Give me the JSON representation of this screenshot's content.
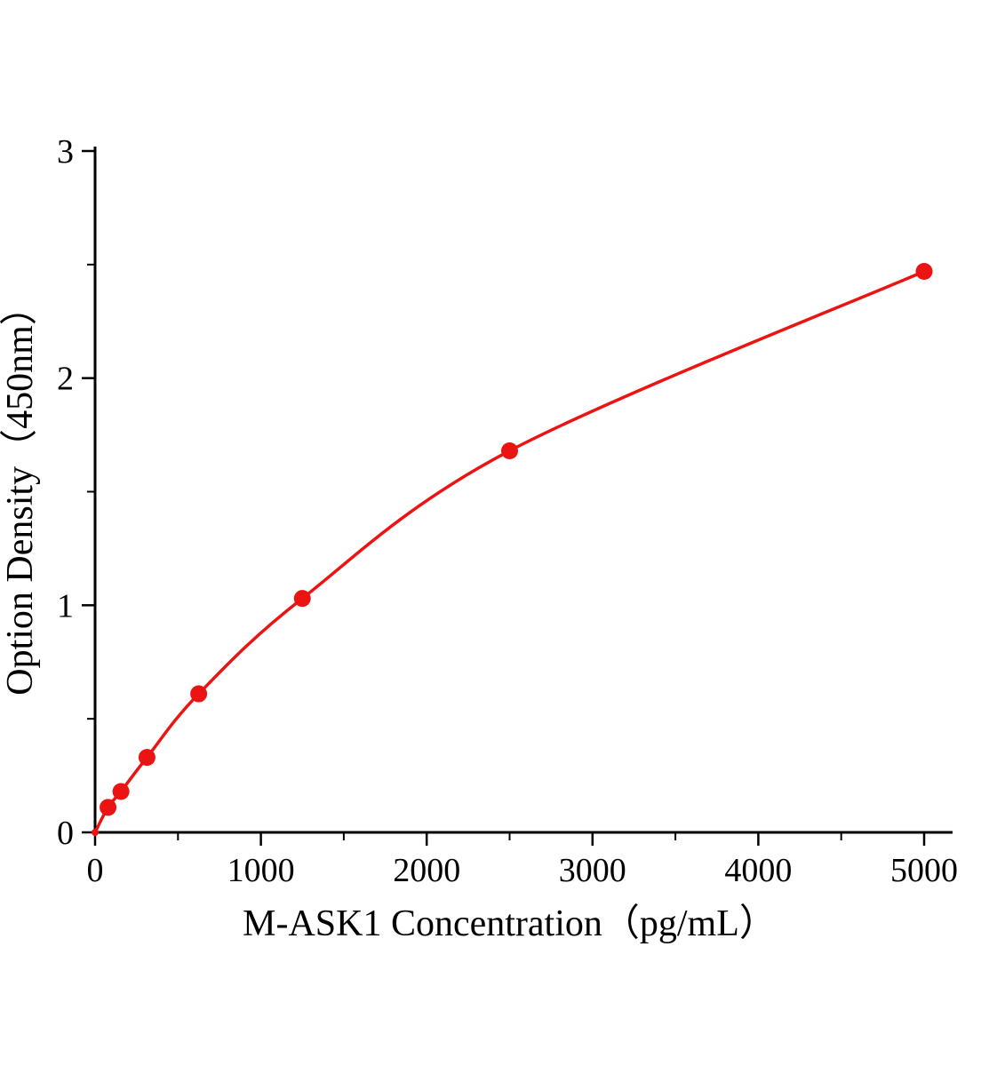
{
  "chart_data": {
    "type": "line",
    "title": "",
    "xlabel": "M-ASK1 Concentration（pg/mL）",
    "ylabel": "Option Density（450nm）",
    "x": [
      0,
      78,
      156,
      313,
      625,
      1250,
      2500,
      5000
    ],
    "y": [
      0,
      0.11,
      0.18,
      0.33,
      0.61,
      1.03,
      1.68,
      2.47
    ],
    "xlim": [
      0,
      5000
    ],
    "ylim": [
      0,
      3
    ],
    "xticks": [
      0,
      1000,
      2000,
      3000,
      4000,
      5000
    ],
    "xtick_labels": [
      "0",
      "1000",
      "2000",
      "3000",
      "4000",
      "5000"
    ],
    "yticks": [
      0,
      1,
      2,
      3
    ],
    "ytick_labels": [
      "0",
      "1",
      "2",
      "3"
    ],
    "x_minor_ticks": [
      500,
      1500,
      2500,
      3500,
      4500
    ],
    "y_minor_ticks": [
      0.5,
      1.5,
      2.5
    ],
    "grid": false,
    "legend_position": "none",
    "line_color": "#ec1313",
    "marker_color": "#ec1313",
    "axis_color": "#000000"
  }
}
